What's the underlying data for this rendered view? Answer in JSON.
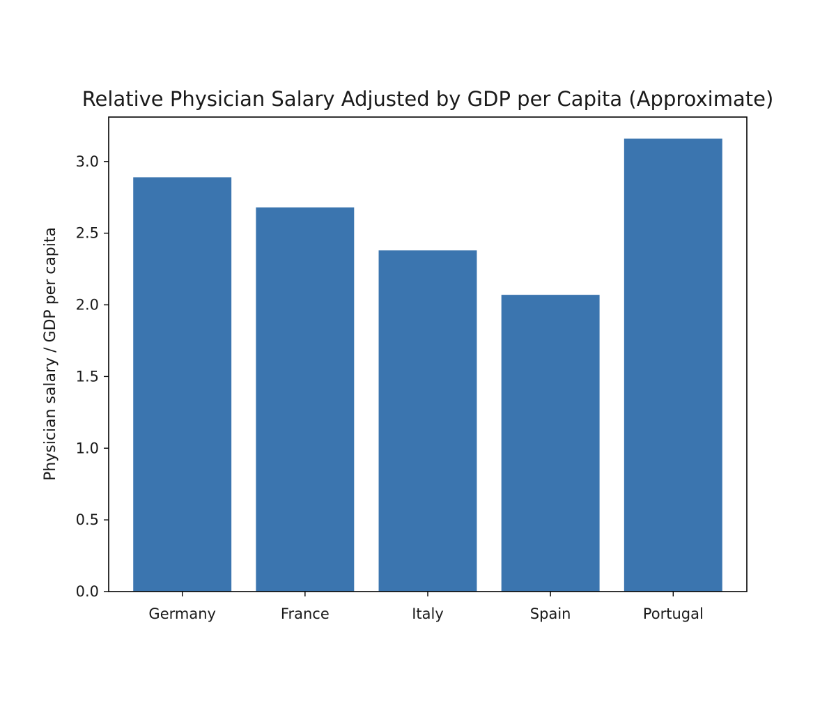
{
  "chart_data": {
    "type": "bar",
    "title": "Relative Physician Salary Adjusted by GDP per Capita (Approximate)",
    "xlabel": "",
    "ylabel": "Physician salary / GDP per capita",
    "categories": [
      "Germany",
      "France",
      "Italy",
      "Spain",
      "Portugal"
    ],
    "values": [
      2.89,
      2.68,
      2.38,
      2.07,
      3.16
    ],
    "ylim": [
      0,
      3.31
    ],
    "yticks": [
      0.0,
      0.5,
      1.0,
      1.5,
      2.0,
      2.5,
      3.0
    ],
    "ytick_labels": [
      "0.0",
      "0.5",
      "1.0",
      "1.5",
      "2.0",
      "2.5",
      "3.0"
    ],
    "bar_color": "#3b75af",
    "grid": false,
    "legend": "none"
  }
}
